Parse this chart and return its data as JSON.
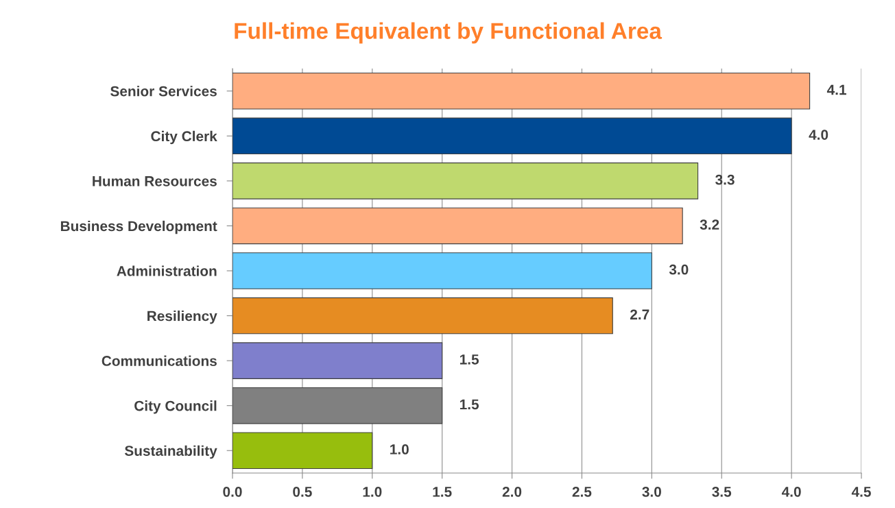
{
  "chart_data": {
    "type": "bar",
    "orientation": "horizontal",
    "title": "Full-time Equivalent by Functional Area",
    "categories": [
      "Senior Services",
      "City Clerk",
      "Human Resources",
      "Business Development",
      "Administration",
      "Resiliency",
      "Communications",
      "City Council",
      "Sustainability"
    ],
    "values": [
      4.13,
      4.0,
      3.33,
      3.22,
      3.0,
      2.72,
      1.5,
      1.5,
      1.0
    ],
    "value_labels": [
      "4.1",
      "4.0",
      "3.3",
      "3.2",
      "3.0",
      "2.7",
      "1.5",
      "1.5",
      "1.0"
    ],
    "colors": [
      "#ffad80",
      "#004a94",
      "#bfd96e",
      "#ffad80",
      "#66ccff",
      "#e68c22",
      "#7f7fcc",
      "#808080",
      "#97be0d"
    ],
    "xlim": [
      0,
      4.5
    ],
    "xticks": [
      {
        "value": 0,
        "label": "0.0"
      },
      0.5,
      {
        "value": 1,
        "label": "1.0"
      },
      1.5,
      {
        "value": 2,
        "label": "2.0"
      },
      2.5,
      {
        "value": 3,
        "label": "3.0"
      },
      3.5,
      {
        "value": 4,
        "label": "4.0"
      },
      4.5
    ],
    "grid": "x",
    "legend": false
  }
}
